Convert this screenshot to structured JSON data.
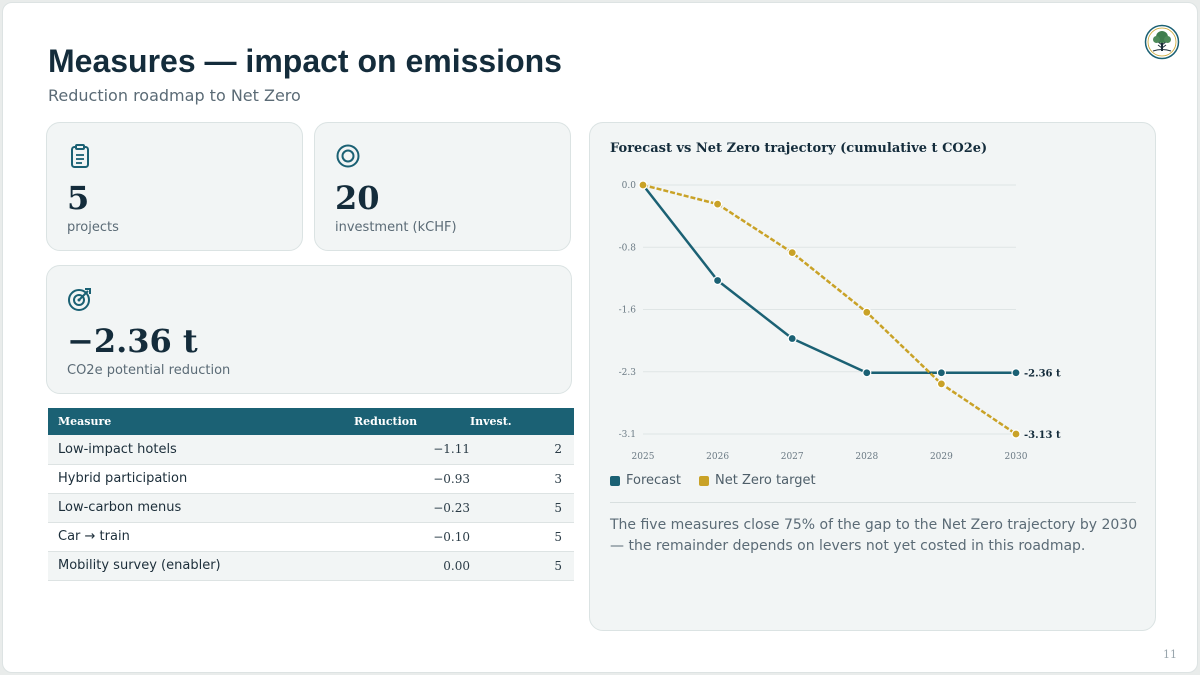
{
  "header": {
    "title": "Measures — impact on emissions",
    "subtitle": "Reduction roadmap to Net Zero"
  },
  "kpis": {
    "projects": {
      "value": "5",
      "label": "projects",
      "icon": "clipboard-icon"
    },
    "investment": {
      "value": "20",
      "label": "investment (kCHF)",
      "icon": "target-ring-icon"
    },
    "reduction": {
      "value": "−2.36 t",
      "label": "CO2e potential reduction",
      "icon": "target-arrow-icon"
    }
  },
  "table": {
    "headers": [
      "Measure",
      "Reduction",
      "Invest."
    ],
    "rows": [
      [
        "Low-impact hotels",
        "−1.11",
        "2"
      ],
      [
        "Hybrid participation",
        "−0.93",
        "3"
      ],
      [
        "Low-carbon menus",
        "−0.23",
        "5"
      ],
      [
        "Car → train",
        "−0.10",
        "5"
      ],
      [
        "Mobility survey (enabler)",
        "0.00",
        "5"
      ]
    ]
  },
  "chart_data": {
    "type": "line",
    "title": "Forecast vs Net Zero trajectory (cumulative t CO2e)",
    "x": [
      2025,
      2026,
      2027,
      2028,
      2029,
      2030
    ],
    "y_ticks": [
      "0.0",
      "-0.8",
      "-1.6",
      "-2.3",
      "-3.1"
    ],
    "ylim": [
      -3.13,
      0
    ],
    "grid": true,
    "legend_position": "bottom-left",
    "series": [
      {
        "name": "Forecast",
        "color": "#1b6174",
        "dashed": false,
        "values": [
          0,
          -1.2,
          -1.93,
          -2.36,
          -2.36,
          -2.36
        ],
        "end_label": "-2.36 t"
      },
      {
        "name": "Net Zero target",
        "color": "#c9a227",
        "dashed": true,
        "values": [
          0,
          -0.24,
          -0.85,
          -1.6,
          -2.5,
          -3.13
        ],
        "end_label": "-3.13 t"
      }
    ]
  },
  "insight": "The five measures close 75% of the gap to the Net Zero trajectory by 2030 — the remainder depends on levers not yet costed in this roadmap.",
  "page_number": "11",
  "colors": {
    "accent": "#1b6174",
    "target": "#c9a227",
    "text": "#142c3b",
    "muted": "#5b6b76"
  }
}
